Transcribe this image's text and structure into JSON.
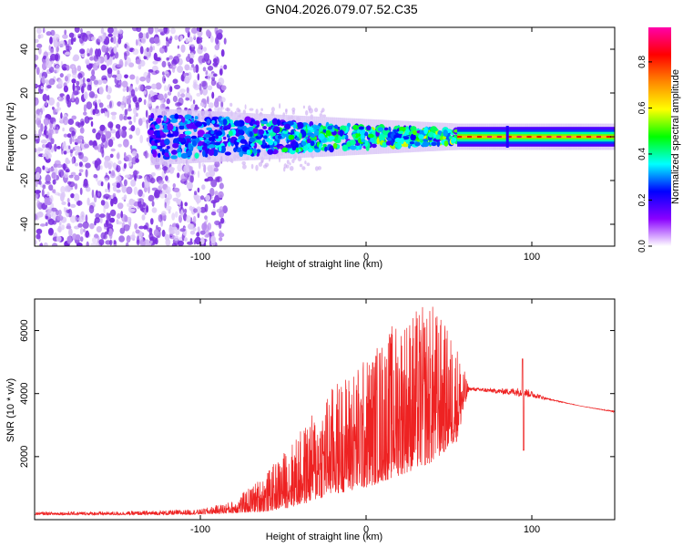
{
  "title": "GN04.2026.079.07.52.C35",
  "colors": {
    "snr_line": "#ee2222",
    "spectrogram_scatter": "#8a2be2"
  },
  "chart_data": [
    {
      "type": "heatmap",
      "name": "spectrogram",
      "xlabel": "Height of straight line (km)",
      "ylabel": "Frequency (Hz)",
      "xlim": [
        -200,
        150
      ],
      "ylim": [
        -50,
        50
      ],
      "xticks": [
        -100,
        0,
        100
      ],
      "xtick_labels": [
        "-100",
        "0",
        "100"
      ],
      "yticks": [
        -40,
        -20,
        0,
        20,
        40
      ],
      "ytick_labels": [
        "-40",
        "-20",
        "0",
        "20",
        "40"
      ],
      "features": {
        "noise_region_x": [
          -200,
          -85
        ],
        "signal_band_center_hz": 0,
        "signal_band_start_km": -130,
        "band_halfwidth_start_hz": 10,
        "band_halfwidth_end_hz": 3,
        "strong_line_from_km": 55,
        "notch_km": 85
      },
      "colorbar": {
        "label": "Normalized spectral amplitude",
        "range": [
          0,
          0.95
        ],
        "ticks": [
          0.0,
          0.2,
          0.4,
          0.6,
          0.8
        ],
        "tick_labels": [
          "0.0",
          "0.2",
          "0.4",
          "0.6",
          "0.8"
        ],
        "colormap": [
          "#ffffff",
          "#8a00ff",
          "#0000ff",
          "#00ffff",
          "#00ff00",
          "#ffff00",
          "#ff8800",
          "#ff0000",
          "#ff00aa"
        ]
      }
    },
    {
      "type": "line",
      "name": "snr",
      "xlabel": "Height of straight line (km)",
      "ylabel": "SNR (10 * v/v)",
      "xlim": [
        -200,
        150
      ],
      "ylim": [
        0,
        7000
      ],
      "xticks": [
        -100,
        0,
        100
      ],
      "xtick_labels": [
        "-100",
        "0",
        "100"
      ],
      "yticks": [
        2000,
        4000,
        6000
      ],
      "ytick_labels": [
        "2000",
        "4000",
        "6000"
      ],
      "envelope": {
        "x": [
          -200,
          -150,
          -120,
          -100,
          -80,
          -60,
          -40,
          -20,
          0,
          20,
          40,
          55,
          62,
          80,
          95,
          110,
          130,
          150
        ],
        "baseline": [
          150,
          150,
          150,
          170,
          200,
          250,
          450,
          800,
          1000,
          1400,
          1800,
          2500,
          4100,
          4000,
          3900,
          3800,
          3600,
          3400
        ],
        "peak": [
          250,
          260,
          300,
          330,
          600,
          1500,
          2800,
          4300,
          5200,
          6500,
          6900,
          5600,
          4200,
          4150,
          4200,
          3850,
          3600,
          3450
        ]
      },
      "features": {
        "dip_km": 95,
        "dip_value": 2200,
        "spike_km": 95,
        "spike_value": 5100
      }
    }
  ]
}
